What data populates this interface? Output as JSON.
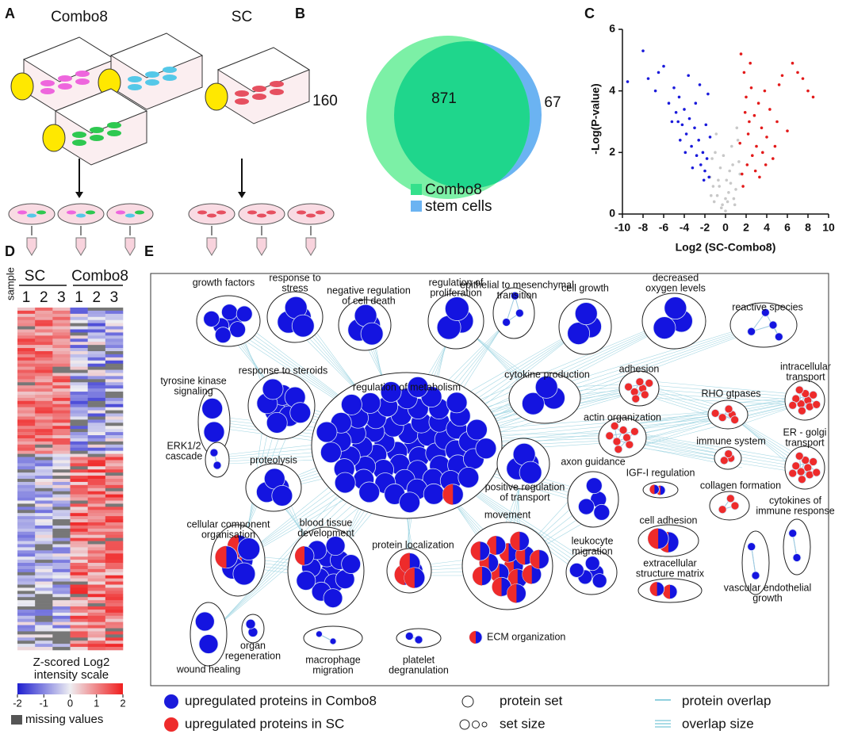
{
  "panels": {
    "letters": [
      "A",
      "B",
      "C",
      "D",
      "E"
    ]
  },
  "cultures": [
    "Combo8",
    "SC"
  ],
  "venn": {
    "values": [
      160,
      871,
      67
    ],
    "legend": [
      "Combo8",
      "stem cells"
    ]
  },
  "chart_data": {
    "type": "scatter",
    "xlabel": "Log2 (SC-Combo8)",
    "ylabel": "-Log(P-value)",
    "xlim": [
      -10,
      10
    ],
    "xticks": [
      -10,
      -8,
      -6,
      -4,
      -2,
      0,
      2,
      4,
      6,
      8,
      10
    ],
    "ylim": [
      0,
      6
    ],
    "yticks": [
      0,
      2,
      4,
      6
    ],
    "series": [
      {
        "color": "#1a1adb",
        "x": [
          -8,
          -7.5,
          -6.8,
          -6,
          -5.5,
          -5,
          -4.8,
          -4.5,
          -4.2,
          -4,
          -3.8,
          -3.5,
          -3.3,
          -3,
          -2.8,
          -2.6,
          -2.4,
          -2.2,
          -2,
          -1.8,
          -1.6,
          -1.5,
          -3.6,
          -4.4,
          -5.2,
          -2.9,
          -2.1,
          -3.2,
          -1.9,
          -2.5,
          -9.5,
          -6.5,
          -3.9,
          -4.6,
          -1.7
        ],
        "values": [
          5.3,
          4.4,
          4.0,
          4.8,
          3.6,
          4.1,
          3.3,
          3.8,
          2.9,
          3.4,
          2.6,
          3.1,
          2.2,
          2.8,
          1.9,
          2.4,
          1.6,
          2.0,
          1.4,
          1.8,
          1.2,
          2.5,
          4.5,
          2.4,
          3.0,
          3.6,
          1.1,
          1.5,
          2.9,
          4.2,
          4.3,
          4.6,
          2.0,
          3.0,
          3.9
        ]
      },
      {
        "color": "#e31a1a",
        "x": [
          1.5,
          1.8,
          2,
          2.2,
          2.5,
          2.8,
          3,
          3.2,
          3.5,
          3.8,
          4,
          4.3,
          4.6,
          5,
          5.5,
          6,
          6.5,
          7,
          8,
          8.5,
          1.6,
          2.1,
          2.6,
          3.3,
          1.9,
          2.4,
          3.6,
          4.8,
          1.7,
          2.9,
          7.5,
          5.2,
          3.9,
          2.3,
          1.4
        ],
        "values": [
          5.2,
          4.6,
          3.8,
          2.6,
          4.1,
          3.2,
          2.2,
          3.6,
          2.8,
          4.0,
          2.5,
          3.4,
          1.8,
          3.0,
          4.5,
          2.7,
          4.9,
          4.6,
          4.0,
          3.8,
          1.3,
          1.6,
          1.9,
          1.2,
          3.3,
          4.9,
          2.0,
          2.2,
          0.9,
          1.4,
          4.4,
          4.2,
          1.6,
          3.0,
          2.3
        ]
      },
      {
        "color": "#c8c8c8",
        "x": [
          -1.5,
          -1.2,
          -1,
          -0.8,
          -0.5,
          -0.3,
          0,
          0.2,
          0.5,
          0.7,
          1,
          1.2,
          -0.9,
          -0.4,
          0.3,
          0.8,
          -1.3,
          1.4,
          0.1,
          -0.6,
          0.6,
          -0.2,
          0.9,
          -1.1,
          1.1,
          0,
          -0.7,
          0.4,
          -1.4,
          1.3
        ],
        "values": [
          1.2,
          0.9,
          2.0,
          0.6,
          1.5,
          0.3,
          0.1,
          0.4,
          1.0,
          1.6,
          0.8,
          2.4,
          2.6,
          0.2,
          0.7,
          0.5,
          1.8,
          1.3,
          1.1,
          0.9,
          2.2,
          1.9,
          0.3,
          0.4,
          2.8,
          0.5,
          1.1,
          1.4,
          0.6,
          1.7
        ]
      }
    ]
  },
  "heatmap": {
    "sample": "sample",
    "groups": [
      "SC",
      "Combo8"
    ],
    "columns": [
      "1",
      "2",
      "3",
      "1",
      "2",
      "3"
    ],
    "scale_title": [
      "Z-scored Log2",
      "intensity scale"
    ],
    "colorbar_lim": [
      -2,
      2
    ],
    "colorbar_ticks": [
      -2,
      -1,
      0,
      1,
      2
    ],
    "missing": "missing values"
  },
  "network": {
    "clusters": [
      {
        "lines": [
          "growth factors"
        ]
      },
      {
        "lines": [
          "response to",
          "stress"
        ]
      },
      {
        "lines": [
          "negative regulation",
          "of cell death"
        ]
      },
      {
        "lines": [
          "regulation of",
          "proliferation"
        ]
      },
      {
        "lines": [
          "epithelial to mesenchymal",
          "transition"
        ]
      },
      {
        "lines": [
          "cell growth"
        ]
      },
      {
        "lines": [
          "decreased",
          "oxygen levels"
        ]
      },
      {
        "lines": [
          "reactive species"
        ]
      },
      {
        "lines": [
          "tyrosine kinase",
          "signaling"
        ]
      },
      {
        "lines": [
          "response to steroids"
        ]
      },
      {
        "lines": [
          "regulation of metabolism"
        ]
      },
      {
        "lines": [
          "cytokine production"
        ]
      },
      {
        "lines": [
          "ERK1/2",
          "cascade"
        ]
      },
      {
        "lines": [
          "proteolysis"
        ]
      },
      {
        "lines": [
          "positive regulation",
          "of transport"
        ]
      },
      {
        "lines": [
          "axon guidance"
        ]
      },
      {
        "lines": [
          "adhesion"
        ]
      },
      {
        "lines": [
          "RHO gtpases"
        ]
      },
      {
        "lines": [
          "intracellular",
          "transport"
        ]
      },
      {
        "lines": [
          "actin organization"
        ]
      },
      {
        "lines": [
          "immune system"
        ]
      },
      {
        "lines": [
          "ER - golgi",
          "transport"
        ]
      },
      {
        "lines": [
          "IGF-I regulation"
        ]
      },
      {
        "lines": [
          "collagen formation"
        ]
      },
      {
        "lines": [
          "cell adhesion"
        ]
      },
      {
        "lines": [
          "cytokines of",
          "immune response"
        ]
      },
      {
        "lines": [
          "vascular endothelial",
          "growth"
        ]
      },
      {
        "lines": [
          "extracellular",
          "structure matrix"
        ]
      },
      {
        "lines": [
          "cellular component",
          "organisation"
        ]
      },
      {
        "lines": [
          "blood tissue",
          "development"
        ]
      },
      {
        "lines": [
          "protein localization"
        ]
      },
      {
        "lines": [
          "movement"
        ]
      },
      {
        "lines": [
          "leukocyte",
          "migration"
        ]
      },
      {
        "lines": [
          "wound healing"
        ]
      },
      {
        "lines": [
          "organ",
          "regeneration"
        ]
      },
      {
        "lines": [
          "macrophage",
          "migration"
        ]
      },
      {
        "lines": [
          "platelet",
          "degranulation"
        ]
      }
    ],
    "ecm": "ECM organization",
    "legend": [
      "upregulated proteins in Combo8",
      "upregulated proteins in SC",
      "protein set",
      "set size",
      "protein overlap",
      "overlap size"
    ]
  }
}
